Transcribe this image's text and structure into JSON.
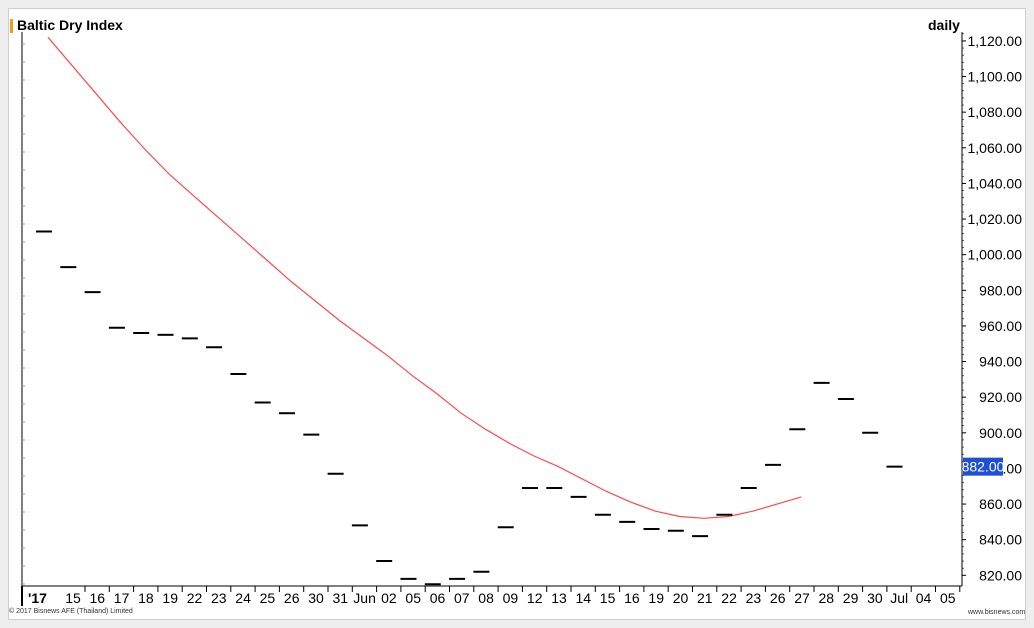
{
  "header": {
    "title": "Baltic Dry Index",
    "interval": "daily"
  },
  "footer": {
    "copyright": "© 2017 Bisnews AFE (Thailand) Limited",
    "source": "www.bisnews.com"
  },
  "colors": {
    "moving_average": "#ff4a4a",
    "bars": "#000000",
    "last_value_box": "#1f4fd8",
    "accent": "#f39c12"
  },
  "chart_data": {
    "type": "line",
    "title": "Baltic Dry Index",
    "x_tick_labels": [
      "'17",
      "15",
      "16",
      "17",
      "18",
      "19",
      "22",
      "23",
      "24",
      "25",
      "26",
      "30",
      "31",
      "Jun",
      "02",
      "05",
      "06",
      "07",
      "08",
      "09",
      "12",
      "13",
      "14",
      "15",
      "16",
      "19",
      "20",
      "21",
      "22",
      "23",
      "26",
      "27",
      "28",
      "29",
      "30",
      "Jul",
      "04",
      "05"
    ],
    "y_tick_labels": [
      "1,120.00",
      "1,100.00",
      "1,080.00",
      "1,060.00",
      "1,040.00",
      "1,020.00",
      "1,000.00",
      "980.00",
      "960.00",
      "940.00",
      "920.00",
      "900.00",
      "880.00",
      "860.00",
      "840.00",
      "820.00"
    ],
    "ylim": [
      814,
      1125
    ],
    "series": [
      {
        "kind": "close-ticks",
        "values": [
          1013,
          993,
          979,
          959,
          956,
          955,
          953,
          948,
          933,
          917,
          911,
          899,
          877,
          848,
          828,
          818,
          815,
          818,
          822,
          847,
          869,
          869,
          864,
          854,
          850,
          846,
          845,
          842,
          854,
          869,
          882,
          902,
          928,
          919,
          900,
          881
        ]
      },
      {
        "kind": "moving-average",
        "values": [
          1122,
          1106,
          1090,
          1074,
          1059,
          1045,
          1033,
          1021,
          1009,
          997,
          985,
          974,
          963,
          953,
          943,
          932,
          922,
          911,
          902,
          894,
          887,
          881,
          874,
          867,
          861,
          856,
          853,
          852,
          853,
          856,
          860,
          864
        ]
      }
    ],
    "last_value_label": "882.00",
    "grid": false,
    "y_axis_side": "right"
  }
}
